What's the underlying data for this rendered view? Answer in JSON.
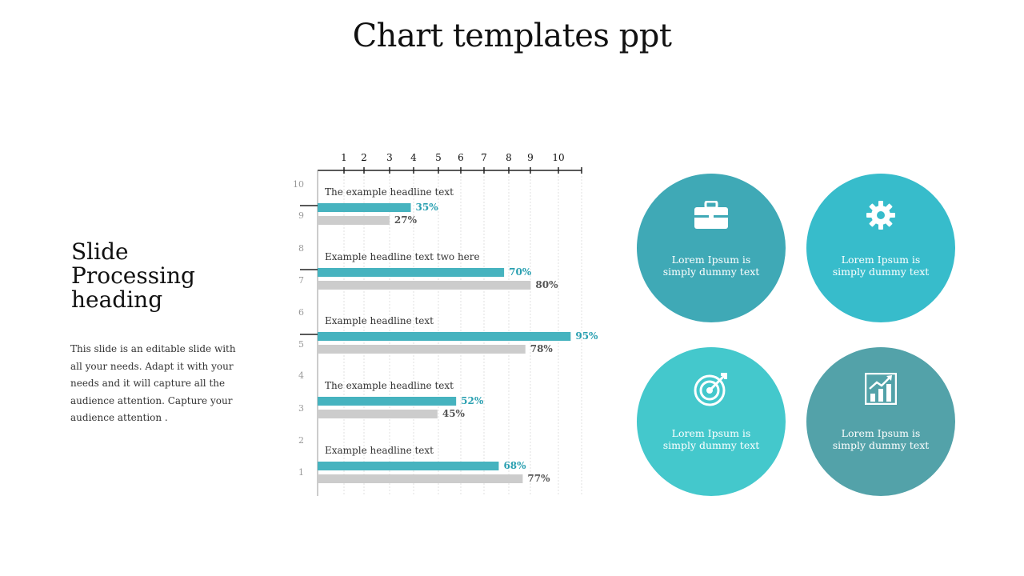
{
  "title": "Chart templates ppt",
  "heading": "Slide Processing heading",
  "body": "This slide is an editable slide with all your needs. Adapt it with your needs and it will capture all the audience attention. Capture your audience attention .",
  "colors": {
    "teal": "#46b3bf",
    "gray": "#cccccc",
    "circle1": "#3fa9b6",
    "circle2": "#37bccb",
    "circle3": "#44c8cc",
    "circle4": "#53a2a9"
  },
  "circles": [
    {
      "icon": "briefcase-icon",
      "text": "Lorem Ipsum is simply dummy text"
    },
    {
      "icon": "gear-icon",
      "text": "Lorem Ipsum is simply dummy text"
    },
    {
      "icon": "target-icon",
      "text": "Lorem Ipsum is simply dummy text"
    },
    {
      "icon": "bar-chart-icon",
      "text": "Lorem Ipsum is simply dummy text"
    }
  ],
  "chart_data": {
    "type": "bar",
    "orientation": "horizontal",
    "x_ticks": [
      1,
      2,
      3,
      4,
      5,
      6,
      7,
      8,
      9,
      10
    ],
    "y_ticks": [
      1,
      2,
      3,
      4,
      5,
      6,
      7,
      8,
      9,
      10
    ],
    "xlim": [
      0,
      10
    ],
    "ylim": [
      0,
      10
    ],
    "x_axis_position": "top",
    "grid": "vertical dashed",
    "categories": [
      "The example headline text",
      "Example headline text two here",
      "Example headline text",
      "The example headline text",
      "Example headline text"
    ],
    "series": [
      {
        "values": [
          35,
          70,
          95,
          52,
          68
        ],
        "labels": [
          "35%",
          "70%",
          "95%",
          "52%",
          "68%"
        ]
      },
      {
        "values": [
          27,
          80,
          78,
          45,
          77
        ],
        "labels": [
          "27%",
          "80%",
          "78%",
          "45%",
          "77%"
        ]
      }
    ]
  }
}
